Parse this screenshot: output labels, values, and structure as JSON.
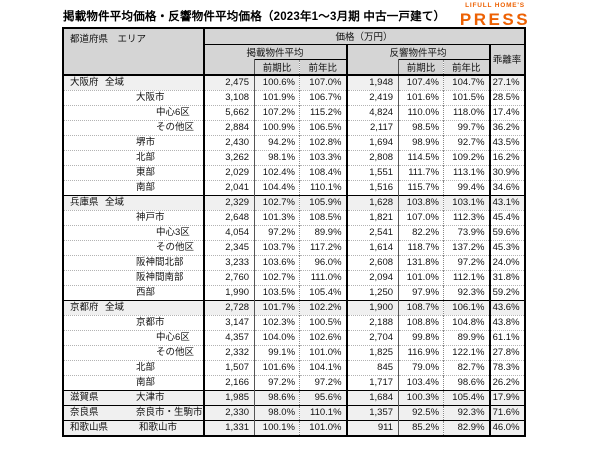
{
  "title": "掲載物件平均価格・反響物件平均価格（2023年1～3月期 中古一戸建て）",
  "logo": {
    "top": "LIFULL HOME'S",
    "main": "PRESS",
    "color": "#ed6103"
  },
  "header": {
    "area_col": "都道府県　エリア",
    "price_group": "価格（万円）",
    "listed_group": "掲載物件平均",
    "response_group": "反響物件平均",
    "divergence": "乖離率",
    "prev_period": "前期比",
    "prev_year": "前年比"
  },
  "chart_data": {
    "type": "table",
    "title": "掲載物件平均価格・反響物件平均価格（2023年1～3月期 中古一戸建て）",
    "unit": "万円",
    "columns": [
      "都道府県",
      "エリア",
      "掲載物件平均",
      "掲載物件平均 前期比",
      "掲載物件平均 前年比",
      "反響物件平均",
      "反響物件平均 前期比",
      "反響物件平均 前年比",
      "乖離率"
    ],
    "rows": [
      {
        "pref": "大阪府",
        "area": "全域",
        "level": 1,
        "shaded": true,
        "group_start": true,
        "values": [
          "2,475",
          "100.6%",
          "107.0%",
          "1,948",
          "107.4%",
          "104.7%",
          "27.1%"
        ]
      },
      {
        "pref": "",
        "area": "大阪市",
        "level": 2,
        "shaded": false,
        "group_start": false,
        "values": [
          "3,108",
          "101.9%",
          "106.7%",
          "2,419",
          "101.6%",
          "101.5%",
          "28.5%"
        ]
      },
      {
        "pref": "",
        "area": "中心6区",
        "level": 3,
        "shaded": false,
        "group_start": false,
        "values": [
          "5,662",
          "107.2%",
          "115.2%",
          "4,824",
          "110.0%",
          "118.0%",
          "17.4%"
        ]
      },
      {
        "pref": "",
        "area": "その他区",
        "level": 3,
        "shaded": false,
        "group_start": false,
        "values": [
          "2,884",
          "100.9%",
          "106.5%",
          "2,117",
          "98.5%",
          "99.7%",
          "36.2%"
        ]
      },
      {
        "pref": "",
        "area": "堺市",
        "level": 2,
        "shaded": false,
        "group_start": false,
        "values": [
          "2,430",
          "94.2%",
          "102.8%",
          "1,694",
          "98.9%",
          "92.7%",
          "43.5%"
        ]
      },
      {
        "pref": "",
        "area": "北部",
        "level": 2,
        "shaded": false,
        "group_start": false,
        "values": [
          "3,262",
          "98.1%",
          "103.3%",
          "2,808",
          "114.5%",
          "109.2%",
          "16.2%"
        ]
      },
      {
        "pref": "",
        "area": "東部",
        "level": 2,
        "shaded": false,
        "group_start": false,
        "values": [
          "2,029",
          "102.4%",
          "108.4%",
          "1,551",
          "111.7%",
          "113.1%",
          "30.9%"
        ]
      },
      {
        "pref": "",
        "area": "南部",
        "level": 2,
        "shaded": false,
        "group_start": false,
        "values": [
          "2,041",
          "104.4%",
          "110.1%",
          "1,516",
          "115.7%",
          "99.4%",
          "34.6%"
        ]
      },
      {
        "pref": "兵庫県",
        "area": "全域",
        "level": 1,
        "shaded": true,
        "group_start": true,
        "values": [
          "2,329",
          "102.7%",
          "105.9%",
          "1,628",
          "103.8%",
          "103.1%",
          "43.1%"
        ]
      },
      {
        "pref": "",
        "area": "神戸市",
        "level": 2,
        "shaded": false,
        "group_start": false,
        "values": [
          "2,648",
          "101.3%",
          "108.5%",
          "1,821",
          "107.0%",
          "112.3%",
          "45.4%"
        ]
      },
      {
        "pref": "",
        "area": "中心3区",
        "level": 3,
        "shaded": false,
        "group_start": false,
        "values": [
          "4,054",
          "97.2%",
          "89.9%",
          "2,541",
          "82.2%",
          "73.9%",
          "59.6%"
        ]
      },
      {
        "pref": "",
        "area": "その他区",
        "level": 3,
        "shaded": false,
        "group_start": false,
        "values": [
          "2,345",
          "103.7%",
          "117.2%",
          "1,614",
          "118.7%",
          "137.2%",
          "45.3%"
        ]
      },
      {
        "pref": "",
        "area": "阪神間北部",
        "level": 2,
        "shaded": false,
        "group_start": false,
        "values": [
          "3,233",
          "103.6%",
          "96.0%",
          "2,608",
          "131.8%",
          "97.2%",
          "24.0%"
        ]
      },
      {
        "pref": "",
        "area": "阪神間南部",
        "level": 2,
        "shaded": false,
        "group_start": false,
        "values": [
          "2,760",
          "102.7%",
          "111.0%",
          "2,094",
          "101.0%",
          "112.1%",
          "31.8%"
        ]
      },
      {
        "pref": "",
        "area": "西部",
        "level": 2,
        "shaded": false,
        "group_start": false,
        "values": [
          "1,990",
          "103.5%",
          "105.4%",
          "1,250",
          "97.9%",
          "92.3%",
          "59.2%"
        ]
      },
      {
        "pref": "京都府",
        "area": "全域",
        "level": 1,
        "shaded": true,
        "group_start": true,
        "values": [
          "2,728",
          "101.7%",
          "102.2%",
          "1,900",
          "108.7%",
          "106.1%",
          "43.6%"
        ]
      },
      {
        "pref": "",
        "area": "京都市",
        "level": 2,
        "shaded": false,
        "group_start": false,
        "values": [
          "3,147",
          "102.3%",
          "100.5%",
          "2,188",
          "108.8%",
          "104.8%",
          "43.8%"
        ]
      },
      {
        "pref": "",
        "area": "中心6区",
        "level": 3,
        "shaded": false,
        "group_start": false,
        "values": [
          "4,357",
          "104.0%",
          "102.6%",
          "2,704",
          "99.8%",
          "89.9%",
          "61.1%"
        ]
      },
      {
        "pref": "",
        "area": "その他区",
        "level": 3,
        "shaded": false,
        "group_start": false,
        "values": [
          "2,332",
          "99.1%",
          "101.0%",
          "1,825",
          "116.9%",
          "122.1%",
          "27.8%"
        ]
      },
      {
        "pref": "",
        "area": "北部",
        "level": 2,
        "shaded": false,
        "group_start": false,
        "values": [
          "1,507",
          "101.6%",
          "104.1%",
          "845",
          "79.0%",
          "82.7%",
          "78.3%"
        ]
      },
      {
        "pref": "",
        "area": "南部",
        "level": 2,
        "shaded": false,
        "group_start": false,
        "values": [
          "2,166",
          "97.2%",
          "97.2%",
          "1,717",
          "103.4%",
          "98.6%",
          "26.2%"
        ]
      },
      {
        "pref": "滋賀県",
        "area": "大津市",
        "level": 2,
        "shaded": true,
        "group_start": true,
        "values": [
          "1,985",
          "98.6%",
          "95.6%",
          "1,684",
          "100.3%",
          "105.4%",
          "17.9%"
        ]
      },
      {
        "pref": "奈良県",
        "area": "奈良市・生駒市",
        "level": 2,
        "shaded": true,
        "group_start": true,
        "values": [
          "2,330",
          "98.0%",
          "110.1%",
          "1,357",
          "92.5%",
          "92.3%",
          "71.6%"
        ]
      },
      {
        "pref": "和歌山県",
        "area": "和歌山市",
        "level": 2,
        "shaded": true,
        "group_start": true,
        "values": [
          "1,331",
          "100.1%",
          "101.0%",
          "911",
          "85.2%",
          "82.9%",
          "46.0%"
        ]
      }
    ]
  }
}
